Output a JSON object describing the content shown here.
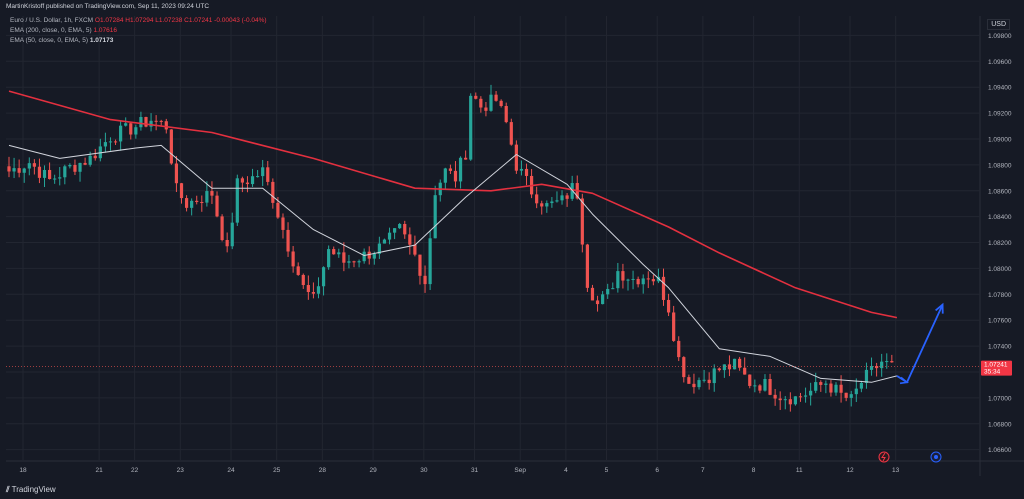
{
  "header": {
    "publisher": "MartinKristoff published on TradingView.com, Sep 11, 2023 09:24 UTC"
  },
  "legend": {
    "symbol_line": "Euro / U.S. Dollar, 1h, FXCM",
    "ohlc": "O1.07284 H1.07294 L1.07238 C1.07241 -0.00043 (-0.04%)",
    "ema200_label": "EMA (200, close, 0, EMA, 5)",
    "ema200_value": "1.07616",
    "ema50_label": "EMA (50, close, 0, EMA, 5)",
    "ema50_value": "1.07173"
  },
  "currency": "USD",
  "footer": {
    "brand": "TradingView"
  },
  "colors": {
    "up": "#26a69a",
    "down": "#ef5350",
    "ema200": "#e3303f",
    "ema50": "#d1d4dc",
    "arrow": "#2962ff",
    "bg": "#161a25",
    "grid": "#222631"
  },
  "chart_data": {
    "type": "candlestick",
    "x_ticks": [
      "18",
      "21",
      "22",
      "23",
      "24",
      "25",
      "28",
      "29",
      "30",
      "31",
      "Sep",
      "4",
      "5",
      "6",
      "7",
      "8",
      "11",
      "12",
      "13"
    ],
    "y_ticks": [
      "1.06600",
      "1.06800",
      "1.07000",
      "1.07200",
      "1.07400",
      "1.07600",
      "1.07800",
      "1.08000",
      "1.08200",
      "1.08400",
      "1.08600",
      "1.08800",
      "1.09000",
      "1.09200",
      "1.09400",
      "1.09600",
      "1.09800"
    ],
    "ylim": [
      1.0652,
      1.0995
    ],
    "price_label": {
      "value": "1.07241",
      "countdown": "35:34"
    },
    "close_anchors": [
      [
        0,
        1.0875
      ],
      [
        4,
        1.0882
      ],
      [
        8,
        1.0868
      ],
      [
        12,
        1.0878
      ],
      [
        16,
        1.0885
      ],
      [
        20,
        1.0902
      ],
      [
        24,
        1.0908
      ],
      [
        28,
        1.0915
      ],
      [
        31,
        1.091
      ],
      [
        33,
        1.086
      ],
      [
        35,
        1.085
      ],
      [
        38,
        1.0855
      ],
      [
        40,
        1.0858
      ],
      [
        41,
        1.0842
      ],
      [
        43,
        1.0812
      ],
      [
        45,
        1.0865
      ],
      [
        48,
        1.087
      ],
      [
        50,
        1.0875
      ],
      [
        52,
        1.0855
      ],
      [
        55,
        1.0818
      ],
      [
        58,
        1.0785
      ],
      [
        60,
        1.0775
      ],
      [
        63,
        1.0815
      ],
      [
        66,
        1.0805
      ],
      [
        70,
        1.081
      ],
      [
        74,
        1.0818
      ],
      [
        77,
        1.083
      ],
      [
        80,
        1.081
      ],
      [
        82,
        1.079
      ],
      [
        84,
        1.086
      ],
      [
        86,
        1.0875
      ],
      [
        88,
        1.087
      ],
      [
        90,
        1.089
      ],
      [
        91,
        1.0935
      ],
      [
        93,
        1.0925
      ],
      [
        96,
        1.093
      ],
      [
        98,
        1.0912
      ],
      [
        100,
        1.088
      ],
      [
        103,
        1.086
      ],
      [
        106,
        1.0848
      ],
      [
        109,
        1.0852
      ],
      [
        111,
        1.0862
      ],
      [
        112,
        1.0858
      ],
      [
        114,
        1.079
      ],
      [
        116,
        1.0772
      ],
      [
        118,
        1.078
      ],
      [
        120,
        1.0798
      ],
      [
        123,
        1.0792
      ],
      [
        126,
        1.0795
      ],
      [
        128,
        1.079
      ],
      [
        130,
        1.077
      ],
      [
        132,
        1.073
      ],
      [
        134,
        1.0712
      ],
      [
        137,
        1.0715
      ],
      [
        140,
        1.0722
      ],
      [
        143,
        1.0725
      ],
      [
        146,
        1.0712
      ],
      [
        149,
        1.071
      ],
      [
        152,
        1.0702
      ],
      [
        155,
        1.07
      ],
      [
        158,
        1.0705
      ],
      [
        161,
        1.0712
      ],
      [
        164,
        1.0702
      ],
      [
        166,
        1.0698
      ],
      [
        168,
        1.0712
      ],
      [
        170,
        1.072
      ],
      [
        172,
        1.0728
      ],
      [
        174,
        1.0724
      ]
    ],
    "ema200": [
      [
        0,
        1.0937
      ],
      [
        20,
        1.0915
      ],
      [
        40,
        1.0905
      ],
      [
        60,
        1.0885
      ],
      [
        80,
        1.0862
      ],
      [
        95,
        1.086
      ],
      [
        105,
        1.0865
      ],
      [
        115,
        1.0858
      ],
      [
        130,
        1.0832
      ],
      [
        140,
        1.0812
      ],
      [
        155,
        1.0785
      ],
      [
        170,
        1.0766
      ],
      [
        175,
        1.0762
      ]
    ],
    "ema50": [
      [
        0,
        1.0895
      ],
      [
        10,
        1.0885
      ],
      [
        25,
        1.0893
      ],
      [
        30,
        1.0895
      ],
      [
        40,
        1.0862
      ],
      [
        50,
        1.0862
      ],
      [
        60,
        1.083
      ],
      [
        70,
        1.081
      ],
      [
        80,
        1.0818
      ],
      [
        90,
        1.0855
      ],
      [
        100,
        1.0888
      ],
      [
        110,
        1.0865
      ],
      [
        115,
        1.0842
      ],
      [
        125,
        1.0803
      ],
      [
        130,
        1.0785
      ],
      [
        140,
        1.0738
      ],
      [
        150,
        1.0732
      ],
      [
        160,
        1.0715
      ],
      [
        170,
        1.0712
      ],
      [
        175,
        1.0717
      ]
    ],
    "arrow_path": [
      [
        175,
        1.0717
      ],
      [
        177,
        1.0712
      ],
      [
        184,
        1.0772
      ]
    ]
  }
}
